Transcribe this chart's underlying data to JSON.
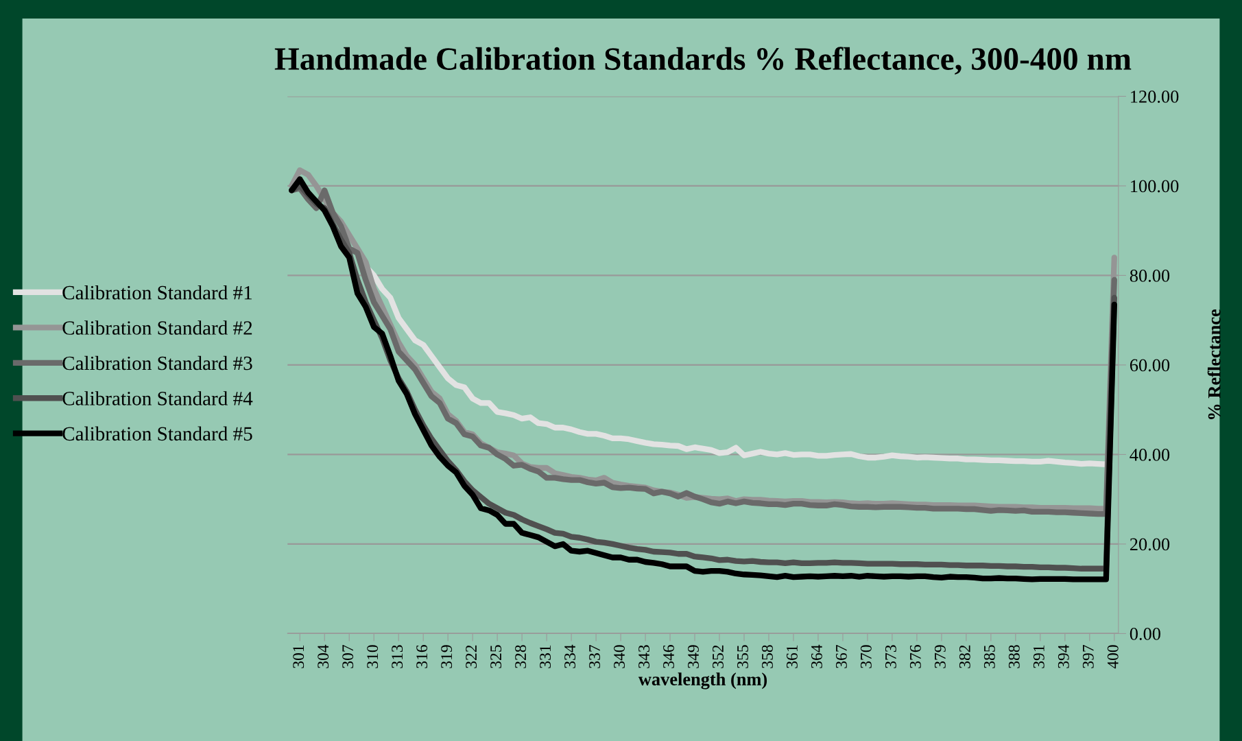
{
  "chart_data": {
    "type": "line",
    "title": "Handmade Calibration Standards % Reflectance, 300-400 nm",
    "xlabel": "wavelength (nm)",
    "ylabel": "% Reflectance",
    "categories": [
      null,
      "301",
      null,
      null,
      "304",
      null,
      null,
      "307",
      null,
      null,
      "310",
      null,
      null,
      "313",
      null,
      null,
      "316",
      null,
      null,
      "319",
      null,
      null,
      "322",
      null,
      null,
      "325",
      null,
      null,
      "328",
      null,
      null,
      "331",
      null,
      null,
      "334",
      null,
      null,
      "337",
      null,
      null,
      "340",
      null,
      null,
      "343",
      null,
      null,
      "346",
      null,
      null,
      "349",
      null,
      null,
      "352",
      null,
      null,
      "355",
      null,
      null,
      "358",
      null,
      null,
      "361",
      null,
      null,
      "364",
      null,
      null,
      "367",
      null,
      null,
      "370",
      null,
      null,
      "373",
      null,
      null,
      "376",
      null,
      null,
      "379",
      null,
      null,
      "382",
      null,
      null,
      "385",
      null,
      null,
      "388",
      null,
      null,
      "391",
      null,
      null,
      "394",
      null,
      null,
      "397",
      null,
      null,
      "400"
    ],
    "ylim": [
      0,
      120
    ],
    "yticks": [
      {
        "value": 0,
        "label": "0.00"
      },
      {
        "value": 20,
        "label": "20.00"
      },
      {
        "value": 40,
        "label": "40.00"
      },
      {
        "value": 60,
        "label": "60.00"
      },
      {
        "value": 80,
        "label": "80.00"
      },
      {
        "value": 100,
        "label": "100.00"
      },
      {
        "value": 120,
        "label": "120.00"
      }
    ],
    "grid": "y",
    "legend": "left",
    "marker": "none",
    "line_style": "solid",
    "series": [
      {
        "name": "Calibration Standard #1",
        "color": "#e2e2e2",
        "values": [
          null,
          null,
          null,
          null,
          null,
          null,
          null,
          null,
          null,
          82,
          80,
          77,
          75,
          70.5,
          68,
          65.5,
          64.5,
          62,
          59.5,
          57,
          55.5,
          55,
          52.5,
          51.5,
          51.5,
          49.5,
          49.2,
          48.8,
          48,
          48.3,
          47,
          46.8,
          46,
          46,
          45.6,
          45,
          44.6,
          44.6,
          44.2,
          43.6,
          43.6,
          43.4,
          43,
          42.6,
          42.3,
          42.2,
          42,
          41.9,
          41.2,
          41.6,
          41.3,
          41,
          40.3,
          40.5,
          41.5,
          39.8,
          40.2,
          40.6,
          40.2,
          40,
          40.3,
          39.9,
          40,
          40,
          39.7,
          39.7,
          39.9,
          40,
          40.1,
          39.6,
          39.3,
          39.3,
          39.5,
          39.8,
          39.6,
          39.5,
          39.3,
          39.4,
          39.3,
          39.2,
          39.1,
          39.1,
          38.9,
          38.9,
          38.8,
          38.7,
          38.7,
          38.6,
          38.5,
          38.5,
          38.4,
          38.4,
          38.6,
          38.4,
          38.2,
          38.1,
          37.9,
          38,
          37.9,
          37.8,
          null
        ]
      },
      {
        "name": "Calibration Standard #2",
        "color": "#959595",
        "values": [
          100,
          103.5,
          102.5,
          100,
          97,
          94,
          92,
          89,
          86,
          83,
          77,
          73,
          69,
          65,
          62,
          60,
          57,
          54,
          52.5,
          49,
          47.5,
          45,
          44.5,
          42.5,
          41.5,
          40.5,
          40.2,
          39.8,
          38,
          37.2,
          37,
          37,
          35.8,
          35.4,
          35,
          34.8,
          34.4,
          34.2,
          34.8,
          33.7,
          33.3,
          33,
          32.8,
          32.6,
          32,
          31.7,
          31.5,
          31,
          30.3,
          30.5,
          30.3,
          30.1,
          30,
          30.2,
          29.6,
          30,
          29.9,
          29.9,
          29.7,
          29.6,
          29.5,
          29.6,
          29.6,
          29.4,
          29.4,
          29.3,
          29.4,
          29.3,
          29.1,
          29,
          29.1,
          29,
          29,
          29.1,
          29,
          28.9,
          28.8,
          28.8,
          28.7,
          28.7,
          28.7,
          28.6,
          28.6,
          28.6,
          28.5,
          28.4,
          28.3,
          28.3,
          28.3,
          28.2,
          28.2,
          28.1,
          28.1,
          28.1,
          28.1,
          28,
          28,
          28,
          27.9,
          27.9,
          84
        ]
      },
      {
        "name": "Calibration Standard #3",
        "color": "#6a6a6a",
        "values": [
          99,
          99.5,
          97,
          95,
          99,
          94,
          91,
          86,
          85,
          79,
          74,
          71,
          68,
          63,
          61,
          59,
          56,
          53,
          51.5,
          48,
          47,
          44.5,
          44,
          42,
          41.5,
          40,
          39,
          37.5,
          37.7,
          36.8,
          36.2,
          34.8,
          34.8,
          34.5,
          34.3,
          34.3,
          33.8,
          33.5,
          33.7,
          32.7,
          32.5,
          32.6,
          32.4,
          32.3,
          31.3,
          31.7,
          31.3,
          30.6,
          31.4,
          30.6,
          30,
          29.3,
          29,
          29.5,
          29.1,
          29.5,
          29.2,
          29.1,
          28.9,
          28.9,
          28.7,
          29,
          29,
          28.7,
          28.6,
          28.6,
          28.9,
          28.7,
          28.4,
          28.3,
          28.3,
          28.2,
          28.3,
          28.3,
          28.3,
          28.2,
          28.1,
          28.1,
          27.9,
          27.9,
          27.9,
          27.9,
          27.8,
          27.8,
          27.6,
          27.4,
          27.6,
          27.5,
          27.4,
          27.5,
          27.2,
          27.2,
          27.2,
          27.1,
          27.1,
          27,
          26.9,
          26.8,
          26.7,
          26.7,
          79
        ]
      },
      {
        "name": "Calibration Standard #4",
        "color": "#505050",
        "values": [
          99,
          100,
          98,
          96,
          95,
          91.5,
          88,
          85,
          79,
          74,
          70,
          66,
          61,
          57,
          54,
          50,
          46.5,
          43.5,
          41,
          38.5,
          36.5,
          34,
          32,
          30.5,
          29,
          28,
          27,
          26.5,
          25.5,
          24.7,
          24,
          23.3,
          22.5,
          22.3,
          21.6,
          21.4,
          21,
          20.5,
          20.3,
          20,
          19.6,
          19.2,
          18.9,
          18.7,
          18.3,
          18.2,
          18.1,
          17.8,
          17.8,
          17.2,
          17,
          16.8,
          16.4,
          16.5,
          16.2,
          16.1,
          16.2,
          16,
          15.9,
          15.9,
          15.7,
          15.9,
          15.7,
          15.7,
          15.8,
          15.8,
          15.9,
          15.8,
          15.8,
          15.7,
          15.6,
          15.6,
          15.6,
          15.6,
          15.5,
          15.5,
          15.5,
          15.4,
          15.4,
          15.4,
          15.3,
          15.3,
          15.2,
          15.2,
          15.2,
          15.1,
          15.1,
          15,
          15,
          14.9,
          14.9,
          14.8,
          14.8,
          14.7,
          14.7,
          14.6,
          14.5,
          14.5,
          14.5,
          14.5,
          75
        ]
      },
      {
        "name": "Calibration Standard #5",
        "color": "#000000",
        "values": [
          99,
          101.5,
          98.5,
          96.5,
          94.5,
          91,
          86.5,
          84,
          76,
          73,
          68.5,
          67,
          62,
          56.5,
          53.5,
          49,
          45.5,
          42,
          39.5,
          37.5,
          36,
          33,
          31,
          28,
          27.5,
          26.5,
          24.5,
          24.5,
          22.5,
          22,
          21.5,
          20.5,
          19.5,
          20,
          18.5,
          18.3,
          18.5,
          18,
          17.5,
          17,
          17,
          16.5,
          16.5,
          16,
          15.8,
          15.5,
          15,
          15,
          15,
          14,
          13.8,
          14,
          14,
          13.8,
          13.4,
          13.2,
          13.1,
          13,
          12.8,
          12.6,
          12.9,
          12.6,
          12.7,
          12.8,
          12.7,
          12.8,
          12.9,
          12.8,
          12.9,
          12.7,
          12.9,
          12.8,
          12.7,
          12.8,
          12.8,
          12.7,
          12.8,
          12.8,
          12.6,
          12.5,
          12.7,
          12.6,
          12.6,
          12.5,
          12.3,
          12.3,
          12.4,
          12.3,
          12.3,
          12.2,
          12.1,
          12.2,
          12.2,
          12.2,
          12.2,
          12.1,
          12.1,
          12.1,
          12.1,
          12.1,
          73.5
        ]
      }
    ]
  }
}
